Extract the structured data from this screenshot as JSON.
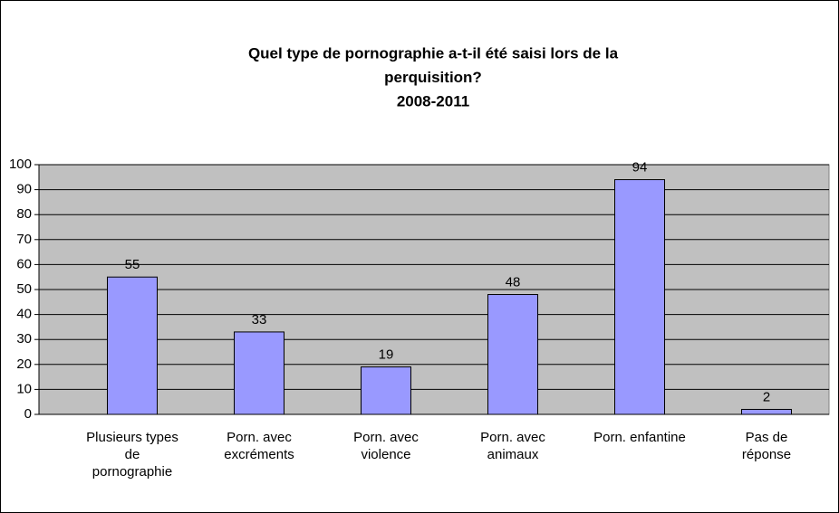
{
  "chart_data": {
    "type": "bar",
    "title": [
      "Quel type de pornographie a-t-il été saisi lors de la",
      "perquisition?",
      "2008-2011"
    ],
    "categories": [
      "Plusieurs types\nde\npornographie",
      "Porn. avec\nexcréments",
      "Porn. avec\nviolence",
      "Porn. avec\nanimaux",
      "Porn. enfantine",
      "Pas de\nréponse"
    ],
    "values": [
      55,
      33,
      19,
      48,
      94,
      2
    ],
    "color": "#9999ff",
    "ylim": [
      0,
      100
    ],
    "yticks": [
      0,
      10,
      20,
      30,
      40,
      50,
      60,
      70,
      80,
      90,
      100
    ],
    "grid": true
  }
}
